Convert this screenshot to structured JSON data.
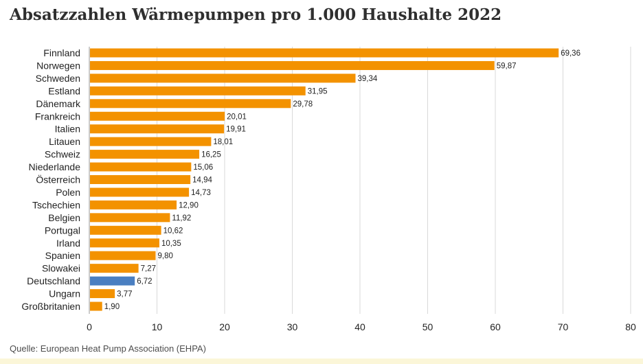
{
  "title": "Absatzzahlen Wärmepumpen pro 1.000 Haushalte 2022",
  "source": "Quelle: European Heat Pump Association (EHPA)",
  "colors": {
    "bar": "#f39200",
    "highlight": "#4a7fc1",
    "grid": "#d9d9d9",
    "axis": "#9a9a9a",
    "text": "#222222"
  },
  "chart_data": {
    "type": "bar",
    "orientation": "horizontal",
    "title": "Absatzzahlen Wärmepumpen pro 1.000 Haushalte 2022",
    "categories": [
      "Finnland",
      "Norwegen",
      "Schweden",
      "Estland",
      "Dänemark",
      "Frankreich",
      "Italien",
      "Litauen",
      "Schweiz",
      "Niederlande",
      "Österreich",
      "Polen",
      "Tschechien",
      "Belgien",
      "Portugal",
      "Irland",
      "Spanien",
      "Slowakei",
      "Deutschland",
      "Ungarn",
      "Großbritanien"
    ],
    "values": [
      69.36,
      59.87,
      39.34,
      31.95,
      29.78,
      20.01,
      19.91,
      18.01,
      16.25,
      15.06,
      14.94,
      14.73,
      12.9,
      11.92,
      10.62,
      10.35,
      9.8,
      7.27,
      6.72,
      3.77,
      1.9
    ],
    "value_labels": [
      "69,36",
      "59,87",
      "39,34",
      "31,95",
      "29,78",
      "20,01",
      "19,91",
      "18,01",
      "16,25",
      "15,06",
      "14,94",
      "14,73",
      "12,90",
      "11,92",
      "10,62",
      "10,35",
      "9,80",
      "7,27",
      "6,72",
      "3,77",
      "1,90"
    ],
    "highlight_category": "Deutschland",
    "xlim": [
      0,
      80
    ],
    "xticks": [
      0,
      10,
      20,
      30,
      40,
      50,
      60,
      70,
      80
    ],
    "xtick_labels": [
      "0",
      "10",
      "20",
      "30",
      "40",
      "50",
      "60",
      "70",
      "80"
    ],
    "xlabel": "",
    "ylabel": "",
    "grid": true,
    "legend": "none"
  }
}
